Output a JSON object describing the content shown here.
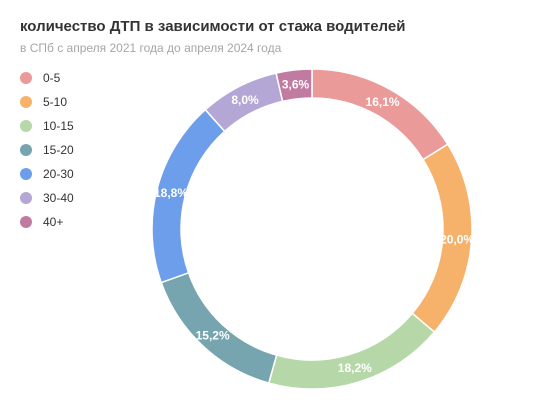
{
  "header": {
    "title": "количество ДТП в зависимости от стажа водителей",
    "subtitle": "в СПб с апреля 2021 года до апреля 2024 года"
  },
  "chart_data": {
    "type": "pie",
    "variant": "donut",
    "legend_position": "left",
    "categories": [
      "0-5",
      "5-10",
      "10-15",
      "15-20",
      "20-30",
      "30-40",
      "40+"
    ],
    "values": [
      16.1,
      20.0,
      18.2,
      15.2,
      18.8,
      8.0,
      3.6
    ],
    "value_labels": [
      "16,1%",
      "20,0%",
      "18,2%",
      "15,2%",
      "18,8%",
      "8,0%",
      "3,6%"
    ],
    "colors": [
      "#ea9a99",
      "#f6b26b",
      "#b6d7a8",
      "#76a5af",
      "#6d9eeb",
      "#b4a7d6",
      "#c27ba0"
    ]
  }
}
